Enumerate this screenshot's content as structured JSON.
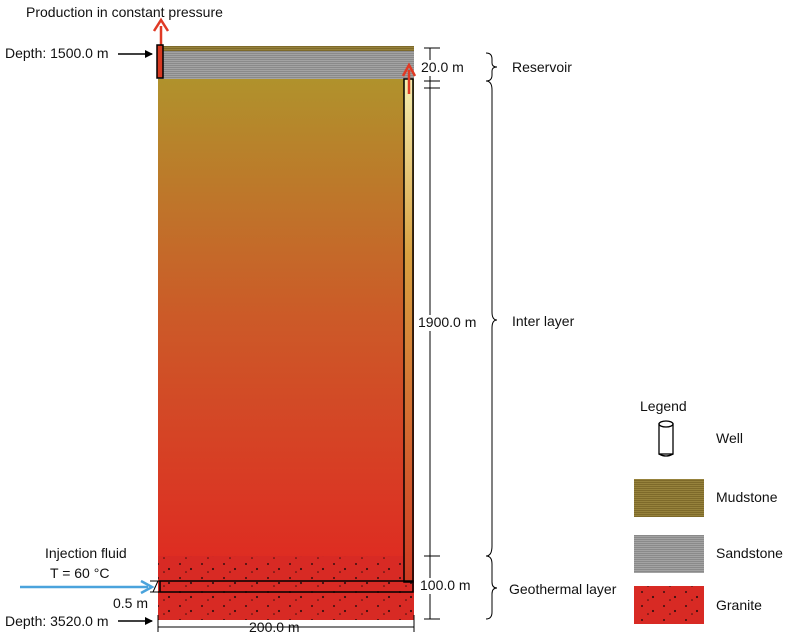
{
  "top": {
    "production_label": "Production in constant pressure",
    "depth_top": "Depth: 1500.0 m"
  },
  "left": {
    "injection_label": "Injection fluid",
    "injection_temp": "T = 60 °C",
    "radius_label": "0.5 m",
    "depth_bottom": "Depth: 3520.0 m"
  },
  "dimensions": {
    "reservoir_thickness": "20.0 m",
    "inter_thickness": "1900.0 m",
    "geothermal_thickness": "100.0 m",
    "width": "200.0 m"
  },
  "layers": {
    "reservoir": "Reservoir",
    "inter": "Inter layer",
    "geothermal": "Geothermal layer"
  },
  "legend": {
    "title": "Legend",
    "items": [
      "Well",
      "Mudstone",
      "Sandstone",
      "Granite"
    ]
  },
  "colors": {
    "mudstone": "#7e6a2a",
    "sandstone": "#9b9b9b",
    "granite": "#d82a24",
    "arrow_production": "#e03a25",
    "arrow_injection": "#4aa3dc"
  }
}
